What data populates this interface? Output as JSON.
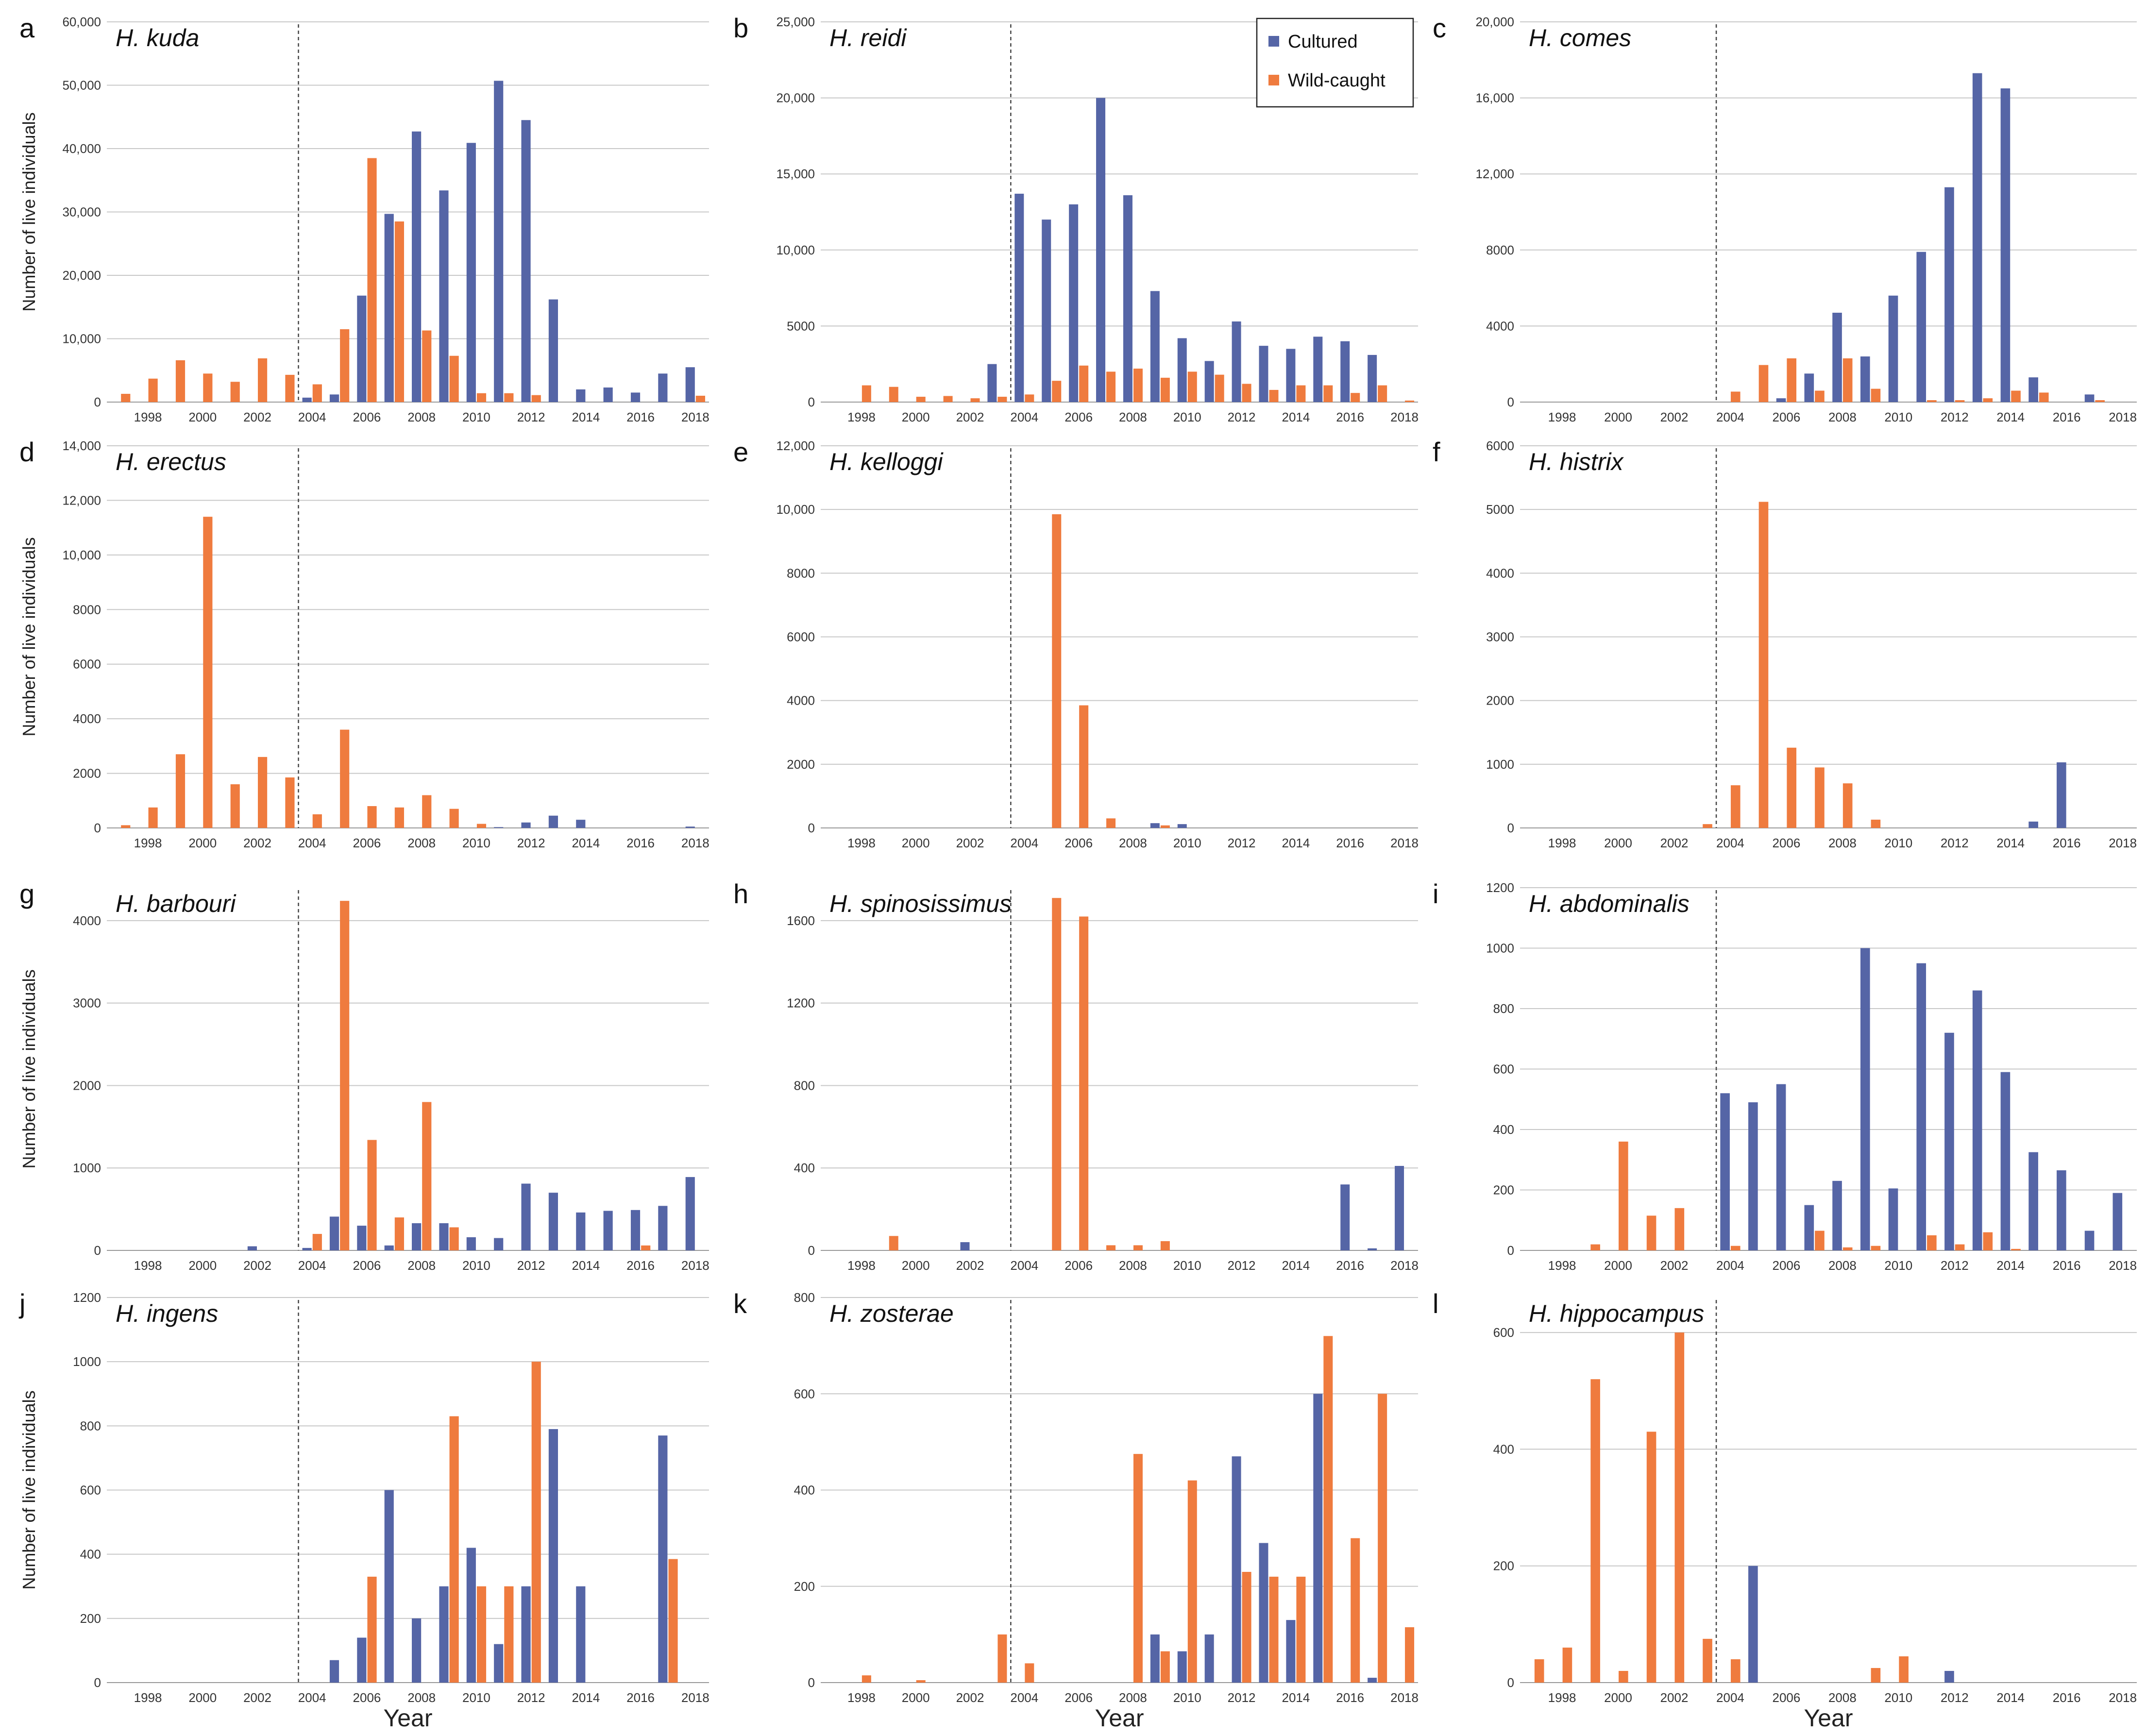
{
  "figure": {
    "ylabel": "Number of live individuals",
    "xlabel": "Year",
    "divider_year": 2003.5,
    "legend": {
      "cultured": "Cultured",
      "wild": "Wild-caught"
    },
    "colors": {
      "cultured": "#5565a6",
      "wild": "#ef7b3e",
      "grid": "#c8c8c8",
      "axis": "#999999",
      "divider": "#444444"
    }
  },
  "chart_data": [
    {
      "type": "bar",
      "panel": "a",
      "title": "H. kuda",
      "year_start": 1997,
      "ylim": [
        0,
        60000
      ],
      "yticks": [
        0,
        10000,
        20000,
        30000,
        40000,
        50000,
        60000
      ],
      "yticklabels": [
        "0",
        "10,000",
        "20,000",
        "30,000",
        "40,000",
        "50,000",
        "60,000"
      ],
      "xticks": [
        1998,
        2000,
        2002,
        2004,
        2006,
        2008,
        2010,
        2012,
        2014,
        2016,
        2018
      ],
      "xticklabels": [
        "1998",
        "2000",
        "2002",
        "2004",
        "2006",
        "2008",
        "2010",
        "2012",
        "2014",
        "2016",
        "2018"
      ],
      "cultured": [
        0,
        0,
        0,
        0,
        0,
        0,
        0,
        700,
        1200,
        16800,
        29700,
        42700,
        33400,
        40900,
        50700,
        44500,
        16200,
        2000,
        2300,
        1500,
        4500,
        5500
      ],
      "wild": [
        1300,
        3700,
        6600,
        4500,
        3200,
        6900,
        4300,
        2800,
        11500,
        38500,
        28500,
        11300,
        7300,
        1400,
        1400,
        1100,
        0,
        0,
        0,
        0,
        0,
        1000
      ]
    },
    {
      "type": "bar",
      "panel": "b",
      "title": "H. reidi",
      "year_start": 1997,
      "ylim": [
        0,
        25000
      ],
      "yticks": [
        0,
        5000,
        10000,
        15000,
        20000,
        25000
      ],
      "yticklabels": [
        "0",
        "5000",
        "10,000",
        "15,000",
        "20,000",
        "25,000"
      ],
      "xticks": [
        1998,
        2000,
        2002,
        2004,
        2006,
        2008,
        2010,
        2012,
        2014,
        2016,
        2018
      ],
      "xticklabels": [
        "1998",
        "2000",
        "2002",
        "2004",
        "2006",
        "2008",
        "2010",
        "2012",
        "2014",
        "2016",
        "2018"
      ],
      "cultured": [
        0,
        0,
        0,
        0,
        0,
        0,
        2500,
        13700,
        12000,
        13000,
        20000,
        13600,
        7300,
        4200,
        2700,
        5300,
        3700,
        3500,
        4300,
        4000,
        3100,
        0
      ],
      "wild": [
        0,
        1100,
        1000,
        350,
        400,
        250,
        350,
        500,
        1400,
        2400,
        2000,
        2200,
        1600,
        2000,
        1800,
        1200,
        800,
        1100,
        1100,
        600,
        1100,
        100
      ]
    },
    {
      "type": "bar",
      "panel": "c",
      "title": "H. comes",
      "year_start": 1997,
      "ylim": [
        0,
        20000
      ],
      "yticks": [
        0,
        4000,
        8000,
        12000,
        16000,
        20000
      ],
      "yticklabels": [
        "0",
        "4000",
        "8000",
        "12,000",
        "16,000",
        "20,000"
      ],
      "xticks": [
        1998,
        2000,
        2002,
        2004,
        2006,
        2008,
        2010,
        2012,
        2014,
        2016,
        2018
      ],
      "xticklabels": [
        "1998",
        "2000",
        "2002",
        "2004",
        "2006",
        "2008",
        "2010",
        "2012",
        "2014",
        "2016",
        "2018"
      ],
      "cultured": [
        0,
        0,
        0,
        0,
        0,
        0,
        0,
        0,
        0,
        200,
        1500,
        4700,
        2400,
        5600,
        7900,
        11300,
        17300,
        16500,
        1300,
        0,
        400,
        0
      ],
      "wild": [
        0,
        0,
        0,
        0,
        0,
        0,
        0,
        550,
        1950,
        2300,
        600,
        2300,
        700,
        0,
        100,
        100,
        200,
        600,
        500,
        0,
        100,
        0
      ]
    },
    {
      "type": "bar",
      "panel": "d",
      "title": "H. erectus",
      "year_start": 1997,
      "ylim": [
        0,
        14000
      ],
      "yticks": [
        0,
        2000,
        4000,
        6000,
        8000,
        10000,
        12000,
        14000
      ],
      "yticklabels": [
        "0",
        "2000",
        "4000",
        "6000",
        "8000",
        "10,000",
        "12,000",
        "14,000"
      ],
      "xticks": [
        1998,
        2000,
        2002,
        2004,
        2006,
        2008,
        2010,
        2012,
        2014,
        2016,
        2018
      ],
      "xticklabels": [
        "1998",
        "2000",
        "2002",
        "2004",
        "2006",
        "2008",
        "2010",
        "2012",
        "2014",
        "2016",
        "2018"
      ],
      "cultured": [
        0,
        0,
        0,
        0,
        0,
        0,
        0,
        0,
        0,
        0,
        0,
        0,
        0,
        0,
        30,
        200,
        450,
        300,
        0,
        0,
        0,
        50
      ],
      "wild": [
        100,
        750,
        2700,
        11400,
        1600,
        2600,
        1850,
        500,
        3600,
        800,
        750,
        1200,
        700,
        150,
        0,
        0,
        0,
        0,
        0,
        0,
        0,
        0
      ]
    },
    {
      "type": "bar",
      "panel": "e",
      "title": "H. kelloggi",
      "year_start": 1997,
      "ylim": [
        0,
        12000
      ],
      "yticks": [
        0,
        2000,
        4000,
        6000,
        8000,
        10000,
        12000
      ],
      "yticklabels": [
        "0",
        "2000",
        "4000",
        "6000",
        "8000",
        "10,000",
        "12,000"
      ],
      "xticks": [
        1998,
        2000,
        2002,
        2004,
        2006,
        2008,
        2010,
        2012,
        2014,
        2016,
        2018
      ],
      "xticklabels": [
        "1998",
        "2000",
        "2002",
        "2004",
        "2006",
        "2008",
        "2010",
        "2012",
        "2014",
        "2016",
        "2018"
      ],
      "cultured": [
        0,
        0,
        0,
        0,
        0,
        0,
        0,
        0,
        0,
        0,
        0,
        0,
        150,
        120,
        0,
        0,
        0,
        0,
        0,
        0,
        0,
        0
      ],
      "wild": [
        0,
        0,
        0,
        0,
        0,
        0,
        0,
        0,
        9850,
        3850,
        300,
        0,
        80,
        0,
        0,
        0,
        0,
        0,
        0,
        0,
        0,
        0
      ]
    },
    {
      "type": "bar",
      "panel": "f",
      "title": "H. histrix",
      "year_start": 1997,
      "ylim": [
        0,
        6000
      ],
      "yticks": [
        0,
        1000,
        2000,
        3000,
        4000,
        5000,
        6000
      ],
      "yticklabels": [
        "0",
        "1000",
        "2000",
        "3000",
        "4000",
        "5000",
        "6000"
      ],
      "xticks": [
        1998,
        2000,
        2002,
        2004,
        2006,
        2008,
        2010,
        2012,
        2014,
        2016,
        2018
      ],
      "xticklabels": [
        "1998",
        "2000",
        "2002",
        "2004",
        "2006",
        "2008",
        "2010",
        "2012",
        "2014",
        "2016",
        "2018"
      ],
      "cultured": [
        0,
        0,
        0,
        0,
        0,
        0,
        0,
        0,
        0,
        0,
        0,
        0,
        0,
        0,
        0,
        0,
        0,
        0,
        100,
        1030,
        0,
        0
      ],
      "wild": [
        0,
        0,
        0,
        0,
        0,
        0,
        60,
        670,
        5120,
        1260,
        950,
        700,
        130,
        0,
        0,
        0,
        0,
        0,
        0,
        0,
        0,
        0
      ]
    },
    {
      "type": "bar",
      "panel": "g",
      "title": "H. barbouri",
      "year_start": 1997,
      "ylim": [
        0,
        4400
      ],
      "yticks": [
        0,
        1000,
        2000,
        3000,
        4000
      ],
      "yticklabels": [
        "0",
        "1000",
        "2000",
        "3000",
        "4000"
      ],
      "xticks": [
        1998,
        2000,
        2002,
        2004,
        2006,
        2008,
        2010,
        2012,
        2014,
        2016,
        2018
      ],
      "xticklabels": [
        "1998",
        "2000",
        "2002",
        "2004",
        "2006",
        "2008",
        "2010",
        "2012",
        "2014",
        "2016",
        "2018"
      ],
      "cultured": [
        0,
        0,
        0,
        0,
        0,
        50,
        0,
        30,
        410,
        300,
        60,
        330,
        330,
        160,
        150,
        810,
        700,
        460,
        480,
        490,
        540,
        890
      ],
      "wild": [
        0,
        0,
        0,
        0,
        0,
        0,
        0,
        200,
        4240,
        1340,
        400,
        1800,
        280,
        0,
        0,
        0,
        0,
        0,
        0,
        60,
        0,
        0
      ]
    },
    {
      "type": "bar",
      "panel": "h",
      "title": "H. spinosissimus",
      "year_start": 1997,
      "ylim": [
        0,
        1760
      ],
      "yticks": [
        0,
        400,
        800,
        1200,
        1600
      ],
      "yticklabels": [
        "0",
        "400",
        "800",
        "1200",
        "1600"
      ],
      "xticks": [
        1998,
        2000,
        2002,
        2004,
        2006,
        2008,
        2010,
        2012,
        2014,
        2016,
        2018
      ],
      "xticklabels": [
        "1998",
        "2000",
        "2002",
        "2004",
        "2006",
        "2008",
        "2010",
        "2012",
        "2014",
        "2016",
        "2018"
      ],
      "cultured": [
        0,
        0,
        0,
        0,
        0,
        40,
        0,
        0,
        0,
        0,
        0,
        0,
        0,
        0,
        0,
        0,
        0,
        0,
        0,
        320,
        10,
        410
      ],
      "wild": [
        0,
        0,
        70,
        0,
        0,
        0,
        0,
        0,
        1710,
        1620,
        25,
        25,
        45,
        0,
        0,
        0,
        0,
        0,
        0,
        0,
        0,
        0
      ]
    },
    {
      "type": "bar",
      "panel": "i",
      "title": "H. abdominalis",
      "year_start": 1997,
      "ylim": [
        0,
        1200
      ],
      "yticks": [
        0,
        200,
        400,
        600,
        800,
        1000,
        1200
      ],
      "yticklabels": [
        "0",
        "200",
        "400",
        "600",
        "800",
        "1000",
        "1200"
      ],
      "xticks": [
        1998,
        2000,
        2002,
        2004,
        2006,
        2008,
        2010,
        2012,
        2014,
        2016,
        2018
      ],
      "xticklabels": [
        "1998",
        "2000",
        "2002",
        "2004",
        "2006",
        "2008",
        "2010",
        "2012",
        "2014",
        "2016",
        "2018"
      ],
      "cultured": [
        0,
        0,
        0,
        0,
        0,
        0,
        0,
        520,
        490,
        550,
        150,
        230,
        1000,
        205,
        950,
        720,
        860,
        590,
        325,
        265,
        65,
        190
      ],
      "wild": [
        0,
        0,
        20,
        360,
        115,
        140,
        0,
        15,
        0,
        0,
        65,
        10,
        15,
        0,
        50,
        20,
        60,
        5,
        0,
        0,
        0,
        0
      ]
    },
    {
      "type": "bar",
      "panel": "j",
      "title": "H. ingens",
      "year_start": 1997,
      "ylim": [
        0,
        1200
      ],
      "yticks": [
        0,
        200,
        400,
        600,
        800,
        1000,
        1200
      ],
      "yticklabels": [
        "0",
        "200",
        "400",
        "600",
        "800",
        "1000",
        "1200"
      ],
      "xticks": [
        1998,
        2000,
        2002,
        2004,
        2006,
        2008,
        2010,
        2012,
        2014,
        2016,
        2018
      ],
      "xticklabels": [
        "1998",
        "2000",
        "2002",
        "2004",
        "2006",
        "2008",
        "2010",
        "2012",
        "2014",
        "2016",
        "2018"
      ],
      "cultured": [
        0,
        0,
        0,
        0,
        0,
        0,
        0,
        0,
        70,
        140,
        600,
        200,
        300,
        420,
        120,
        300,
        790,
        300,
        0,
        0,
        770,
        0
      ],
      "wild": [
        0,
        0,
        0,
        0,
        0,
        0,
        0,
        0,
        0,
        330,
        0,
        0,
        830,
        300,
        300,
        1000,
        0,
        0,
        0,
        0,
        385,
        0
      ]
    },
    {
      "type": "bar",
      "panel": "k",
      "title": "H. zosterae",
      "year_start": 1997,
      "ylim": [
        0,
        800
      ],
      "yticks": [
        0,
        200,
        400,
        600,
        800
      ],
      "yticklabels": [
        "0",
        "200",
        "400",
        "600",
        "800"
      ],
      "xticks": [
        1998,
        2000,
        2002,
        2004,
        2006,
        2008,
        2010,
        2012,
        2014,
        2016,
        2018
      ],
      "xticklabels": [
        "1998",
        "2000",
        "2002",
        "2004",
        "2006",
        "2008",
        "2010",
        "2012",
        "2014",
        "2016",
        "2018"
      ],
      "cultured": [
        0,
        0,
        0,
        0,
        0,
        0,
        0,
        0,
        0,
        0,
        0,
        0,
        100,
        65,
        100,
        470,
        290,
        130,
        600,
        0,
        10,
        0
      ],
      "wild": [
        0,
        15,
        0,
        5,
        0,
        0,
        100,
        40,
        0,
        0,
        0,
        475,
        65,
        420,
        0,
        230,
        220,
        220,
        720,
        300,
        600,
        115
      ]
    },
    {
      "type": "bar",
      "panel": "l",
      "title": "H. hippocampus",
      "year_start": 1997,
      "ylim": [
        0,
        660
      ],
      "yticks": [
        0,
        200,
        400,
        600
      ],
      "yticklabels": [
        "0",
        "200",
        "400",
        "600"
      ],
      "xticks": [
        1998,
        2000,
        2002,
        2004,
        2006,
        2008,
        2010,
        2012,
        2014,
        2016,
        2018
      ],
      "xticklabels": [
        "1998",
        "2000",
        "2002",
        "2004",
        "2006",
        "2008",
        "2010",
        "2012",
        "2014",
        "2016",
        "2018"
      ],
      "cultured": [
        0,
        0,
        0,
        0,
        0,
        0,
        0,
        0,
        200,
        0,
        0,
        0,
        0,
        0,
        0,
        20,
        0,
        0,
        0,
        0,
        0,
        0
      ],
      "wild": [
        40,
        60,
        520,
        20,
        430,
        600,
        75,
        40,
        0,
        0,
        0,
        0,
        25,
        45,
        0,
        0,
        0,
        0,
        0,
        0,
        0,
        0
      ]
    }
  ]
}
